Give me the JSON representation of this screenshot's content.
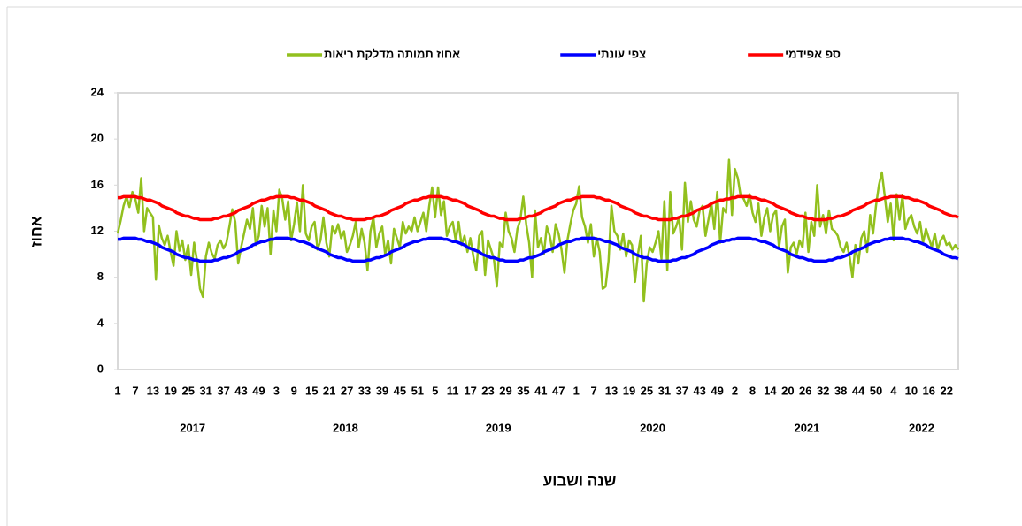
{
  "chart_data": {
    "type": "line",
    "ylabel": "אחוז",
    "xlabel": "שנה ושבוע",
    "ylim": [
      0,
      24
    ],
    "yticks": [
      0,
      4,
      8,
      12,
      16,
      20,
      24
    ],
    "grid": false,
    "legend": "top",
    "year_groups": [
      {
        "label": "2017",
        "size": 52
      },
      {
        "label": "2018",
        "size": 52
      },
      {
        "label": "2019",
        "size": 52
      },
      {
        "label": "2020",
        "size": 53
      },
      {
        "label": "2021",
        "size": 52
      },
      {
        "label": "2022",
        "size": 26
      }
    ],
    "categories": [
      1,
      null,
      null,
      null,
      null,
      null,
      7,
      null,
      null,
      null,
      null,
      null,
      13,
      null,
      null,
      null,
      null,
      null,
      19,
      null,
      null,
      null,
      null,
      null,
      25,
      null,
      null,
      null,
      null,
      null,
      31,
      null,
      null,
      null,
      null,
      null,
      37,
      null,
      null,
      null,
      null,
      null,
      43,
      null,
      null,
      null,
      null,
      null,
      49,
      null,
      null,
      null,
      null,
      null,
      3,
      null,
      null,
      null,
      null,
      null,
      9,
      null,
      null,
      null,
      null,
      null,
      15,
      null,
      null,
      null,
      null,
      null,
      21,
      null,
      null,
      null,
      null,
      null,
      27,
      null,
      null,
      null,
      null,
      null,
      33,
      null,
      null,
      null,
      null,
      null,
      39,
      null,
      null,
      null,
      null,
      null,
      45,
      null,
      null,
      null,
      null,
      null,
      51,
      null,
      null,
      null,
      null,
      null,
      5,
      null,
      null,
      null,
      null,
      null,
      11,
      null,
      null,
      null,
      null,
      null,
      17,
      null,
      null,
      null,
      null,
      null,
      23,
      null,
      null,
      null,
      null,
      null,
      29,
      null,
      null,
      null,
      null,
      null,
      35,
      null,
      null,
      null,
      null,
      null,
      41,
      null,
      null,
      null,
      null,
      null,
      47,
      null,
      null,
      null,
      null,
      null,
      1,
      null,
      null,
      null,
      null,
      null,
      7,
      null,
      null,
      null,
      null,
      null,
      13,
      null,
      null,
      null,
      null,
      null,
      19,
      null,
      null,
      null,
      null,
      null,
      25,
      null,
      null,
      null,
      null,
      null,
      31,
      null,
      null,
      null,
      null,
      null,
      37,
      null,
      null,
      null,
      null,
      null,
      43,
      null,
      null,
      null,
      null,
      null,
      49,
      null,
      null,
      null,
      null,
      null,
      2,
      null,
      null,
      null,
      null,
      null,
      8,
      null,
      null,
      null,
      null,
      null,
      14,
      null,
      null,
      null,
      null,
      null,
      20,
      null,
      null,
      null,
      null,
      null,
      26,
      null,
      null,
      null,
      null,
      null,
      32,
      null,
      null,
      null,
      null,
      null,
      38,
      null,
      null,
      null,
      null,
      null,
      44,
      null,
      null,
      null,
      null,
      null,
      50,
      null,
      null,
      null,
      null,
      null,
      4,
      null,
      null,
      null,
      null,
      null,
      10,
      null,
      null,
      null,
      null,
      null,
      16,
      null,
      null,
      null,
      null,
      null,
      22,
      null,
      null,
      null,
      null
    ],
    "series": [
      {
        "name": "ספ אפידמי",
        "color": "#ff0000",
        "values": [
          14.9,
          14.9,
          15.0,
          15.0,
          15.0,
          15.0,
          15.0,
          14.9,
          14.9,
          14.8,
          14.7,
          14.7,
          14.6,
          14.5,
          14.4,
          14.2,
          14.1,
          14.0,
          13.9,
          13.8,
          13.6,
          13.5,
          13.4,
          13.3,
          13.3,
          13.2,
          13.1,
          13.1,
          13.0,
          13.0,
          13.0,
          13.0,
          13.0,
          13.1,
          13.1,
          13.2,
          13.3,
          13.3,
          13.4,
          13.5,
          13.6,
          13.8,
          13.9,
          14.0,
          14.1,
          14.2,
          14.4,
          14.5,
          14.6,
          14.7,
          14.7,
          14.8,
          14.9,
          14.9,
          15.0,
          15.0,
          15.0,
          15.0,
          15.0,
          14.9,
          14.9,
          14.8,
          14.7,
          14.7,
          14.6,
          14.5,
          14.4,
          14.2,
          14.1,
          14.0,
          13.9,
          13.8,
          13.6,
          13.5,
          13.4,
          13.3,
          13.3,
          13.2,
          13.1,
          13.1,
          13.0,
          13.0,
          13.0,
          13.0,
          13.0,
          13.1,
          13.1,
          13.2,
          13.3,
          13.3,
          13.4,
          13.5,
          13.6,
          13.8,
          13.9,
          14.0,
          14.1,
          14.2,
          14.4,
          14.5,
          14.6,
          14.7,
          14.7,
          14.8,
          14.9,
          14.9,
          15.0,
          15.0,
          15.0,
          15.0,
          15.0,
          14.9,
          14.9,
          14.8,
          14.7,
          14.7,
          14.6,
          14.5,
          14.4,
          14.2,
          14.1,
          14.0,
          13.9,
          13.8,
          13.6,
          13.5,
          13.4,
          13.3,
          13.3,
          13.2,
          13.1,
          13.1,
          13.0,
          13.0,
          13.0,
          13.0,
          13.0,
          13.1,
          13.1,
          13.2,
          13.3,
          13.3,
          13.4,
          13.5,
          13.6,
          13.8,
          13.9,
          14.0,
          14.1,
          14.2,
          14.4,
          14.5,
          14.6,
          14.7,
          14.7,
          14.8,
          14.9,
          14.9,
          15.0,
          15.0,
          15.0,
          15.0,
          15.0,
          14.9,
          14.9,
          14.8,
          14.7,
          14.7,
          14.6,
          14.5,
          14.4,
          14.2,
          14.1,
          14.0,
          13.9,
          13.8,
          13.6,
          13.5,
          13.4,
          13.3,
          13.3,
          13.2,
          13.1,
          13.1,
          13.0,
          13.0,
          13.0,
          13.0,
          13.0,
          13.1,
          13.1,
          13.2,
          13.3,
          13.3,
          13.4,
          13.5,
          13.6,
          13.8,
          13.9,
          14.0,
          14.1,
          14.2,
          14.4,
          14.5,
          14.6,
          14.7,
          14.7,
          14.8,
          14.8,
          14.9,
          14.9,
          15.0,
          15.0,
          15.0,
          15.0,
          15.0,
          14.9,
          14.9,
          14.8,
          14.7,
          14.7,
          14.6,
          14.5,
          14.4,
          14.2,
          14.1,
          14.0,
          13.9,
          13.8,
          13.6,
          13.5,
          13.4,
          13.3,
          13.3,
          13.2,
          13.1,
          13.1,
          13.0,
          13.0,
          13.0,
          13.0,
          13.0,
          13.1,
          13.1,
          13.2,
          13.3,
          13.3,
          13.4,
          13.5,
          13.6,
          13.8,
          13.9,
          14.0,
          14.1,
          14.2,
          14.4,
          14.5,
          14.6,
          14.7,
          14.7,
          14.8,
          14.9,
          14.9,
          15.0,
          15.0,
          15.0,
          15.0,
          15.0,
          14.9,
          14.9,
          14.8,
          14.7,
          14.7,
          14.6,
          14.5,
          14.4,
          14.2,
          14.1,
          14.0,
          13.9,
          13.8,
          13.6,
          13.5,
          13.4,
          13.3,
          13.3,
          13.2
        ]
      },
      {
        "name": "צפי עונתי",
        "color": "#0000ff",
        "values": [
          11.3,
          11.3,
          11.4,
          11.4,
          11.4,
          11.4,
          11.4,
          11.3,
          11.3,
          11.2,
          11.1,
          11.1,
          11.0,
          10.9,
          10.8,
          10.6,
          10.5,
          10.4,
          10.3,
          10.2,
          10.0,
          9.9,
          9.8,
          9.7,
          9.7,
          9.6,
          9.5,
          9.5,
          9.4,
          9.4,
          9.4,
          9.4,
          9.4,
          9.5,
          9.5,
          9.6,
          9.7,
          9.7,
          9.8,
          9.9,
          10.0,
          10.2,
          10.3,
          10.4,
          10.5,
          10.6,
          10.8,
          10.9,
          11.0,
          11.1,
          11.1,
          11.2,
          11.3,
          11.3,
          11.4,
          11.4,
          11.4,
          11.4,
          11.4,
          11.3,
          11.3,
          11.2,
          11.1,
          11.1,
          11.0,
          10.9,
          10.8,
          10.6,
          10.5,
          10.4,
          10.3,
          10.2,
          10.0,
          9.9,
          9.8,
          9.7,
          9.7,
          9.6,
          9.5,
          9.5,
          9.4,
          9.4,
          9.4,
          9.4,
          9.4,
          9.5,
          9.5,
          9.6,
          9.7,
          9.7,
          9.8,
          9.9,
          10.0,
          10.2,
          10.3,
          10.4,
          10.5,
          10.6,
          10.8,
          10.9,
          11.0,
          11.1,
          11.1,
          11.2,
          11.3,
          11.3,
          11.4,
          11.4,
          11.4,
          11.4,
          11.4,
          11.3,
          11.3,
          11.2,
          11.1,
          11.1,
          11.0,
          10.9,
          10.8,
          10.6,
          10.5,
          10.4,
          10.3,
          10.2,
          10.0,
          9.9,
          9.8,
          9.7,
          9.7,
          9.6,
          9.5,
          9.5,
          9.4,
          9.4,
          9.4,
          9.4,
          9.4,
          9.5,
          9.5,
          9.6,
          9.7,
          9.7,
          9.8,
          9.9,
          10.0,
          10.2,
          10.3,
          10.4,
          10.5,
          10.6,
          10.8,
          10.9,
          11.0,
          11.1,
          11.1,
          11.2,
          11.3,
          11.3,
          11.4,
          11.4,
          11.4,
          11.4,
          11.4,
          11.3,
          11.3,
          11.2,
          11.1,
          11.1,
          11.0,
          10.9,
          10.8,
          10.6,
          10.5,
          10.4,
          10.3,
          10.2,
          10.0,
          9.9,
          9.8,
          9.7,
          9.7,
          9.6,
          9.5,
          9.5,
          9.4,
          9.4,
          9.4,
          9.4,
          9.4,
          9.5,
          9.5,
          9.6,
          9.7,
          9.7,
          9.8,
          9.9,
          10.0,
          10.2,
          10.3,
          10.4,
          10.5,
          10.6,
          10.8,
          10.9,
          11.0,
          11.1,
          11.1,
          11.2,
          11.2,
          11.3,
          11.3,
          11.4,
          11.4,
          11.4,
          11.4,
          11.4,
          11.3,
          11.3,
          11.2,
          11.1,
          11.1,
          11.0,
          10.9,
          10.8,
          10.6,
          10.5,
          10.4,
          10.3,
          10.2,
          10.0,
          9.9,
          9.8,
          9.7,
          9.7,
          9.6,
          9.5,
          9.5,
          9.4,
          9.4,
          9.4,
          9.4,
          9.4,
          9.5,
          9.5,
          9.6,
          9.7,
          9.7,
          9.8,
          9.9,
          10.0,
          10.2,
          10.3,
          10.4,
          10.5,
          10.6,
          10.8,
          10.9,
          11.0,
          11.1,
          11.1,
          11.2,
          11.3,
          11.3,
          11.4,
          11.4,
          11.4,
          11.4,
          11.4,
          11.3,
          11.3,
          11.2,
          11.1,
          11.1,
          11.0,
          10.9,
          10.8,
          10.6,
          10.5,
          10.4,
          10.3,
          10.2,
          10.0,
          9.9,
          9.8,
          9.7,
          9.7,
          9.6
        ]
      },
      {
        "name": "אחוז תמותה מדלקת ריאות",
        "color": "#92c01e",
        "values": [
          11.8,
          12.9,
          14.2,
          15.0,
          14.1,
          15.4,
          14.8,
          13.6,
          16.6,
          12.0,
          14.0,
          13.6,
          13.2,
          7.8,
          12.5,
          11.4,
          10.8,
          11.6,
          10.2,
          9.0,
          12.0,
          10.3,
          11.2,
          9.5,
          10.8,
          8.2,
          11.0,
          9.4,
          7.0,
          6.3,
          9.8,
          11.0,
          10.1,
          9.6,
          10.8,
          11.2,
          10.5,
          11.0,
          12.4,
          13.9,
          12.8,
          9.2,
          10.6,
          11.8,
          13.0,
          12.2,
          14.0,
          10.8,
          11.6,
          14.2,
          12.4,
          14.0,
          10.0,
          13.8,
          12.0,
          15.6,
          14.8,
          13.0,
          14.6,
          11.2,
          12.6,
          14.5,
          12.0,
          16.0,
          11.8,
          11.2,
          12.4,
          12.8,
          10.4,
          11.2,
          13.2,
          11.0,
          9.8,
          12.4,
          11.8,
          12.6,
          11.4,
          12.0,
          10.2,
          10.8,
          11.6,
          12.8,
          10.6,
          12.2,
          11.0,
          8.6,
          12.0,
          13.2,
          10.6,
          11.8,
          12.4,
          10.0,
          11.2,
          9.2,
          12.2,
          11.4,
          10.6,
          12.8,
          11.8,
          12.4,
          12.0,
          13.2,
          12.0,
          12.8,
          13.6,
          12.0,
          14.2,
          15.8,
          13.2,
          15.8,
          13.4,
          14.6,
          11.6,
          12.4,
          12.8,
          11.2,
          12.8,
          10.8,
          11.6,
          10.2,
          11.4,
          9.8,
          8.6,
          11.6,
          12.0,
          8.2,
          11.2,
          10.4,
          9.6,
          7.2,
          11.0,
          10.6,
          13.6,
          12.0,
          11.4,
          10.2,
          12.2,
          13.0,
          15.0,
          12.6,
          11.0,
          8.0,
          13.8,
          10.6,
          11.4,
          10.0,
          12.4,
          11.6,
          10.2,
          12.6,
          11.8,
          10.4,
          8.4,
          11.2,
          12.6,
          13.8,
          14.4,
          15.9,
          13.2,
          12.4,
          11.0,
          12.6,
          9.8,
          11.4,
          10.2,
          7.0,
          7.2,
          9.4,
          14.2,
          12.0,
          11.6,
          10.4,
          11.8,
          9.8,
          11.2,
          10.8,
          7.6,
          10.0,
          11.6,
          5.9,
          9.2,
          10.6,
          10.2,
          11.0,
          12.0,
          9.6,
          14.6,
          8.6,
          15.4,
          11.8,
          12.4,
          13.2,
          10.4,
          16.2,
          12.8,
          14.6,
          13.0,
          12.4,
          13.8,
          14.2,
          11.6,
          13.0,
          14.4,
          12.2,
          15.4,
          11.0,
          14.0,
          13.6,
          18.2,
          13.4,
          17.4,
          16.6,
          15.0,
          14.8,
          14.2,
          15.2,
          13.6,
          12.8,
          14.4,
          11.6,
          13.2,
          14.0,
          12.0,
          13.4,
          13.8,
          10.6,
          12.4,
          13.0,
          8.4,
          10.6,
          11.0,
          10.0,
          11.2,
          10.6,
          13.6,
          10.2,
          12.8,
          11.6,
          16.0,
          12.4,
          13.4,
          11.8,
          13.8,
          12.2,
          12.0,
          11.6,
          10.6,
          10.2,
          11.0,
          9.8,
          8.0,
          10.8,
          9.2,
          11.4,
          12.0,
          10.2,
          13.4,
          11.8,
          14.2,
          16.0,
          17.1,
          15.0,
          12.8,
          14.4,
          11.2,
          15.2,
          13.0,
          15.1,
          12.2,
          13.0,
          13.4,
          12.4,
          11.8,
          12.8,
          11.0,
          12.2,
          11.4,
          10.6,
          11.8,
          10.4,
          11.2,
          11.6,
          10.8,
          11.0,
          10.4,
          10.8,
          10.4
        ]
      }
    ]
  }
}
